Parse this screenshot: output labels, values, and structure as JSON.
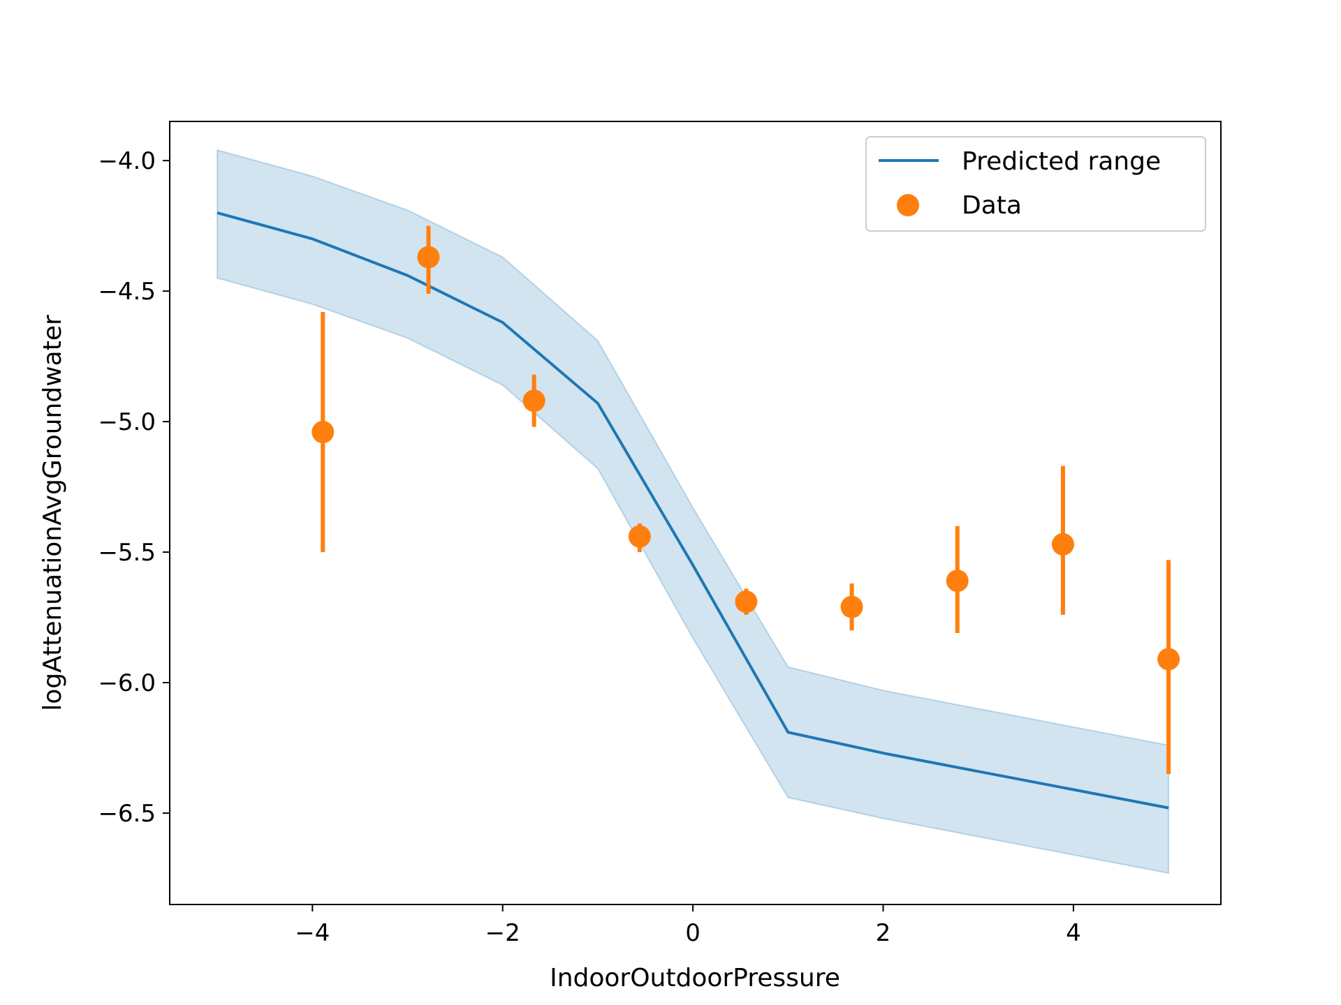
{
  "chart_data": {
    "type": "line",
    "title": "",
    "xlabel": "IndoorOutdoorPressure",
    "ylabel": "logAttenuationAvgGroundwater",
    "xlim": [
      -5.5,
      5.55
    ],
    "ylim": [
      -6.85,
      -3.85
    ],
    "xticks": [
      -4,
      -2,
      0,
      2,
      4
    ],
    "yticks": [
      -4.0,
      -4.5,
      -5.0,
      -5.5,
      -6.0,
      -6.5
    ],
    "xtick_labels": [
      "−4",
      "−2",
      "0",
      "2",
      "4"
    ],
    "ytick_labels": [
      "−4.0",
      "−4.5",
      "−5.0",
      "−5.5",
      "−6.0",
      "−6.5"
    ],
    "grid": false,
    "legend_position": "top-right",
    "colors": {
      "predicted": "#1f77b4",
      "band": "#1f77b4",
      "data": "#ff7f0e"
    },
    "predicted": {
      "name": "Predicted range",
      "x": [
        -5,
        -4,
        -3,
        -2,
        -1,
        0,
        1,
        2,
        3,
        4,
        5
      ],
      "y": [
        -4.2,
        -4.3,
        -4.44,
        -4.62,
        -4.93,
        -5.55,
        -6.19,
        -6.27,
        -6.34,
        -6.41,
        -6.48
      ],
      "lower": [
        -4.45,
        -4.55,
        -4.68,
        -4.86,
        -5.18,
        -5.83,
        -6.44,
        -6.52,
        -6.59,
        -6.66,
        -6.73
      ],
      "upper": [
        -3.96,
        -4.06,
        -4.19,
        -4.37,
        -4.69,
        -5.33,
        -5.94,
        -6.03,
        -6.1,
        -6.17,
        -6.24
      ]
    },
    "data": {
      "name": "Data",
      "x": [
        -3.89,
        -2.78,
        -1.67,
        -0.56,
        0.56,
        1.67,
        2.78,
        3.89,
        5.0
      ],
      "y": [
        -5.04,
        -4.37,
        -4.92,
        -5.44,
        -5.69,
        -5.71,
        -5.61,
        -5.47,
        -5.91
      ],
      "yerr_low": [
        0.46,
        0.14,
        0.1,
        0.06,
        0.05,
        0.09,
        0.2,
        0.27,
        0.44
      ],
      "yerr_high": [
        0.46,
        0.12,
        0.1,
        0.05,
        0.05,
        0.09,
        0.21,
        0.3,
        0.38
      ]
    }
  }
}
